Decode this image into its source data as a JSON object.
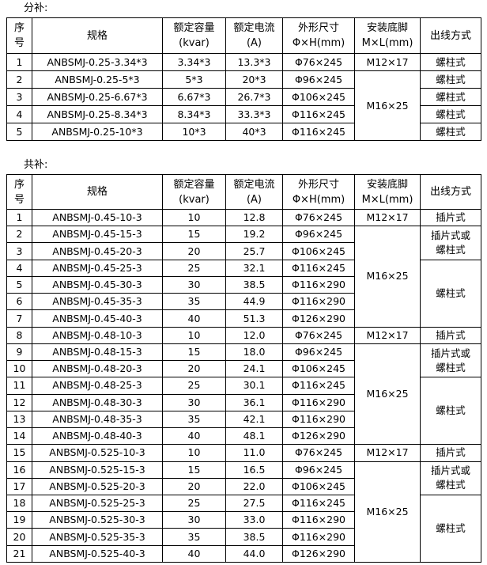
{
  "tables": [
    {
      "title": "分补:",
      "col_names": [
        "index",
        "spec",
        "capacity",
        "current",
        "dimensions",
        "mounting",
        "outlet"
      ],
      "header": [
        [
          "序",
          "号"
        ],
        [
          "规格"
        ],
        [
          "额定容量",
          "(kvar)"
        ],
        [
          "额定电流",
          "(A)"
        ],
        [
          "外形尺寸",
          "Φ×H(mm)"
        ],
        [
          "安装底脚",
          "M×L(mm)"
        ],
        [
          "出线方式"
        ]
      ],
      "rows": [
        [
          "1",
          "ANBSMJ-0.25-3.34*3",
          "3.34*3",
          "13.3*3",
          "Φ76×245",
          {
            "t": "M12×17"
          },
          "螺柱式"
        ],
        [
          "2",
          "ANBSMJ-0.25-5*3",
          "5*3",
          "20*3",
          "Φ96×245",
          {
            "t": "M16×25",
            "rs": 4
          },
          "螺柱式"
        ],
        [
          "3",
          "ANBSMJ-0.25-6.67*3",
          "6.67*3",
          "26.7*3",
          "Φ106×245",
          null,
          "螺柱式"
        ],
        [
          "4",
          "ANBSMJ-0.25-8.34*3",
          "8.34*3",
          "33.3*3",
          "Φ116×245",
          null,
          "螺柱式"
        ],
        [
          "5",
          "ANBSMJ-0.25-10*3",
          "10*3",
          "40*3",
          "Φ116×245",
          null,
          "螺柱式"
        ]
      ]
    },
    {
      "title": "共补:",
      "col_names": [
        "index",
        "spec",
        "capacity",
        "current",
        "dimensions",
        "mounting",
        "outlet"
      ],
      "header": [
        [
          "序",
          "号"
        ],
        [
          "规格"
        ],
        [
          "额定容量",
          "(kvar)"
        ],
        [
          "额定电流",
          "(A)"
        ],
        [
          "外形尺寸",
          "Φ×H(mm)"
        ],
        [
          "安装底脚",
          "M×L(mm)"
        ],
        [
          "出线方式"
        ]
      ],
      "rows": [
        [
          "1",
          "ANBSMJ-0.45-10-3",
          "10",
          "12.8",
          "Φ76×245",
          {
            "t": "M12×17"
          },
          "插片式"
        ],
        [
          "2",
          "ANBSMJ-0.45-15-3",
          "15",
          "19.2",
          "Φ96×245",
          {
            "t": "M16×25",
            "rs": 6
          },
          {
            "lines": [
              "插片式或",
              "螺柱式"
            ],
            "rs": 2
          }
        ],
        [
          "3",
          "ANBSMJ-0.45-20-3",
          "20",
          "25.7",
          "Φ106×245",
          null,
          null
        ],
        [
          "4",
          "ANBSMJ-0.45-25-3",
          "25",
          "32.1",
          "Φ116×245",
          null,
          {
            "t": "螺柱式",
            "rs": 4
          }
        ],
        [
          "5",
          "ANBSMJ-0.45-30-3",
          "30",
          "38.5",
          "Φ116×290",
          null,
          null
        ],
        [
          "6",
          "ANBSMJ-0.45-35-3",
          "35",
          "44.9",
          "Φ116×290",
          null,
          null
        ],
        [
          "7",
          "ANBSMJ-0.45-40-3",
          "40",
          "51.3",
          "Φ126×290",
          null,
          null
        ],
        [
          "8",
          "ANBSMJ-0.48-10-3",
          "10",
          "12.0",
          "Φ76×245",
          {
            "t": "M12×17"
          },
          "插片式"
        ],
        [
          "9",
          "ANBSMJ-0.48-15-3",
          "15",
          "18.0",
          "Φ96×245",
          {
            "t": "M16×25",
            "rs": 6
          },
          {
            "lines": [
              "插片式或",
              "螺柱式"
            ],
            "rs": 2
          }
        ],
        [
          "10",
          "ANBSMJ-0.48-20-3",
          "20",
          "24.1",
          "Φ106×245",
          null,
          null
        ],
        [
          "11",
          "ANBSMJ-0.48-25-3",
          "25",
          "30.1",
          "Φ116×245",
          null,
          {
            "t": "螺柱式",
            "rs": 4
          }
        ],
        [
          "12",
          "ANBSMJ-0.48-30-3",
          "30",
          "36.1",
          "Φ116×290",
          null,
          null
        ],
        [
          "13",
          "ANBSMJ-0.48-35-3",
          "35",
          "42.1",
          "Φ116×290",
          null,
          null
        ],
        [
          "14",
          "ANBSMJ-0.48-40-3",
          "40",
          "48.1",
          "Φ126×290",
          null,
          null
        ],
        [
          "15",
          "ANBSMJ-0.525-10-3",
          "10",
          "11.0",
          "Φ76×245",
          {
            "t": "M12×17"
          },
          "插片式"
        ],
        [
          "16",
          "ANBSMJ-0.525-15-3",
          "15",
          "16.5",
          "Φ96×245",
          {
            "t": "M16×25",
            "rs": 6
          },
          {
            "lines": [
              "插片式或",
              "螺柱式"
            ],
            "rs": 2
          }
        ],
        [
          "17",
          "ANBSMJ-0.525-20-3",
          "20",
          "22.0",
          "Φ106×245",
          null,
          null
        ],
        [
          "18",
          "ANBSMJ-0.525-25-3",
          "25",
          "27.5",
          "Φ116×245",
          null,
          {
            "t": "螺柱式",
            "rs": 4
          }
        ],
        [
          "19",
          "ANBSMJ-0.525-30-3",
          "30",
          "33.0",
          "Φ116×290",
          null,
          null
        ],
        [
          "20",
          "ANBSMJ-0.525-35-3",
          "35",
          "38.5",
          "Φ116×290",
          null,
          null
        ],
        [
          "21",
          "ANBSMJ-0.525-40-3",
          "40",
          "44.0",
          "Φ126×290",
          null,
          null
        ]
      ]
    }
  ]
}
